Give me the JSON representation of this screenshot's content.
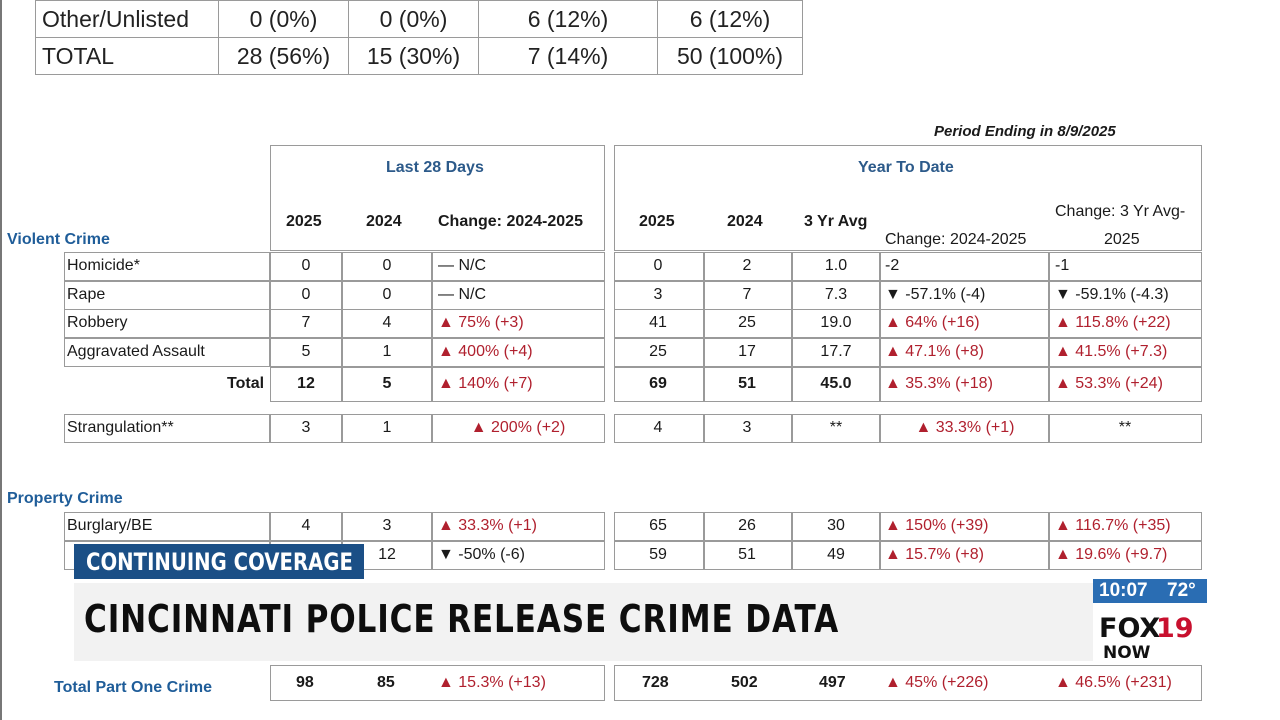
{
  "top_table": {
    "rows": [
      {
        "label": "Other/Unlisted",
        "c1": "0 (0%)",
        "c2": "0 (0%)",
        "c3": "6 (12%)",
        "c4": "6 (12%)"
      },
      {
        "label": "TOTAL",
        "c1": "28 (56%)",
        "c2": "15 (30%)",
        "c3": "7 (14%)",
        "c4": "50 (100%)"
      }
    ]
  },
  "period_ending": "Period Ending in 8/9/2025",
  "groups": {
    "last28": "Last 28 Days",
    "ytd": "Year To Date"
  },
  "columns": {
    "l_2025": "2025",
    "l_2024": "2024",
    "l_change": "Change: 2024-2025",
    "y_2025": "2025",
    "y_2024": "2024",
    "y_avg": "3 Yr Avg",
    "y_change": "Change: 2024-2025",
    "y_avg_change_1": "Change: 3 Yr Avg-",
    "y_avg_change_2": "2025"
  },
  "sections": {
    "violent": "Violent Crime",
    "property": "Property Crime",
    "part_one": "Total Part One Crime"
  },
  "violent_rows": [
    {
      "label": "Homicide*",
      "l25": "0",
      "l24": "0",
      "lchg": "— N/C",
      "y25": "0",
      "y24": "2",
      "avg": "1.0",
      "ychg": "-2",
      "achg": "-1"
    },
    {
      "label": "Rape",
      "l25": "0",
      "l24": "0",
      "lchg": "— N/C",
      "y25": "3",
      "y24": "7",
      "avg": "7.3",
      "ychg": "▼ -57.1% (-4)",
      "achg": "▼ -59.1% (-4.3)"
    },
    {
      "label": "Robbery",
      "l25": "7",
      "l24": "4",
      "lchg": "▲ 75% (+3)",
      "y25": "41",
      "y24": "25",
      "avg": "19.0",
      "ychg": "▲ 64% (+16)",
      "achg": "▲ 115.8% (+22)"
    },
    {
      "label": "Aggravated Assault",
      "l25": "5",
      "l24": "1",
      "lchg": "▲ 400% (+4)",
      "y25": "25",
      "y24": "17",
      "avg": "17.7",
      "ychg": "▲ 47.1% (+8)",
      "achg": "▲ 41.5% (+7.3)"
    }
  ],
  "violent_total": {
    "label": "Total",
    "l25": "12",
    "l24": "5",
    "lchg": "▲ 140% (+7)",
    "y25": "69",
    "y24": "51",
    "avg": "45.0",
    "ychg": "▲ 35.3% (+18)",
    "achg": "▲ 53.3% (+24)"
  },
  "strangulation": {
    "label": "Strangulation**",
    "l25": "3",
    "l24": "1",
    "lchg": "▲ 200% (+2)",
    "y25": "4",
    "y24": "3",
    "avg": "**",
    "ychg": "▲ 33.3% (+1)",
    "achg": "**"
  },
  "property_rows": [
    {
      "label": "Burglary/BE",
      "l25": "4",
      "l24": "3",
      "lchg": "▲ 33.3% (+1)",
      "y25": "65",
      "y24": "26",
      "avg": "30",
      "ychg": "▲ 150% (+39)",
      "achg": "▲ 116.7% (+35)"
    },
    {
      "label": "",
      "l25": "",
      "l24": "12",
      "lchg": "▼ -50% (-6)",
      "y25": "59",
      "y24": "51",
      "avg": "49",
      "ychg": "▲ 15.7% (+8)",
      "achg": "▲ 19.6% (+9.7)"
    }
  ],
  "part_one_total": {
    "l25": "98",
    "l24": "85",
    "lchg": "▲ 15.3% (+13)",
    "y25": "728",
    "y24": "502",
    "avg": "497",
    "ychg": "▲ 45% (+226)",
    "achg": "▲ 46.5% (+231)"
  },
  "lower_third": {
    "tag": "CONTINUING COVERAGE",
    "headline": "CINCINNATI POLICE RELEASE CRIME DATA",
    "time": "10:07",
    "temp": "72°",
    "logo_text": "FOX19",
    "logo_sub": "NOW"
  },
  "colors": {
    "red": "#b0202e",
    "blue_header": "#2c5a8a",
    "tag_bg": "#1b4f86",
    "clock_bg": "#2a6db3"
  }
}
